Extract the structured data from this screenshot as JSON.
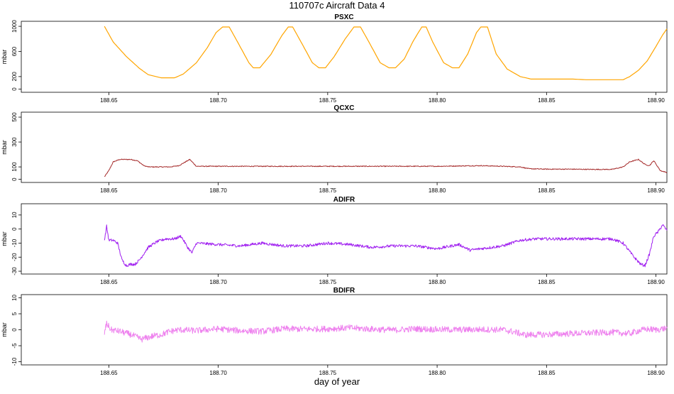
{
  "figure": {
    "title": "110707c   Aircraft Data 4",
    "xlabel": "day of year"
  },
  "chart_data": [
    {
      "type": "line",
      "title": "PSXC",
      "ylabel": "mbar",
      "xlim": [
        188.61,
        188.905
      ],
      "ylim": [
        -50,
        1080
      ],
      "xticks": [
        "188.65",
        "188.70",
        "188.75",
        "188.80",
        "188.85",
        "188.90"
      ],
      "yticks": [
        "0",
        "200",
        "600",
        "1000"
      ],
      "color": "#ffa500",
      "series": [
        {
          "x": [
            188.648,
            188.652,
            188.658,
            188.664,
            188.668,
            188.674,
            188.68,
            188.684,
            188.69,
            188.695,
            188.699,
            188.702,
            188.705,
            188.709,
            188.714,
            188.716,
            188.719,
            188.724,
            188.729,
            188.732,
            188.734,
            188.738,
            188.743,
            188.746,
            188.749,
            188.753,
            188.758,
            188.762,
            188.765,
            188.769,
            188.774,
            188.778,
            188.781,
            188.785,
            188.789,
            188.793,
            188.795,
            188.798,
            188.803,
            188.807,
            188.81,
            188.814,
            188.818,
            188.82,
            188.823,
            188.827,
            188.832,
            188.838,
            188.843,
            188.85,
            188.856,
            188.862,
            188.868,
            188.875,
            188.88,
            188.885,
            188.888,
            188.892,
            188.896,
            188.9,
            188.903,
            188.905
          ],
          "y": [
            1000,
            750,
            520,
            330,
            230,
            180,
            180,
            240,
            420,
            660,
            900,
            990,
            990,
            740,
            420,
            340,
            340,
            550,
            850,
            990,
            990,
            740,
            420,
            340,
            340,
            520,
            800,
            990,
            990,
            740,
            420,
            340,
            340,
            480,
            760,
            990,
            990,
            750,
            420,
            340,
            340,
            560,
            900,
            990,
            990,
            560,
            320,
            200,
            160,
            160,
            160,
            160,
            150,
            150,
            150,
            150,
            200,
            300,
            450,
            680,
            860,
            960
          ]
        }
      ]
    },
    {
      "type": "line",
      "title": "QCXC",
      "ylabel": "mbar",
      "xlim": [
        188.61,
        188.905
      ],
      "ylim": [
        -25,
        540
      ],
      "xticks": [
        "188.65",
        "188.70",
        "188.75",
        "188.80",
        "188.85",
        "188.90"
      ],
      "yticks": [
        "0",
        "100",
        "300",
        "500"
      ],
      "color": "#a52a2a",
      "series": [
        {
          "x": [
            188.648,
            188.65,
            188.652,
            188.655,
            188.66,
            188.663,
            188.666,
            188.668,
            188.672,
            188.678,
            188.682,
            188.685,
            188.687,
            188.69,
            188.7,
            188.72,
            188.74,
            188.76,
            188.78,
            188.8,
            188.82,
            188.83,
            188.838,
            188.842,
            188.85,
            188.86,
            188.87,
            188.88,
            188.885,
            188.888,
            188.892,
            188.895,
            188.897,
            188.899,
            188.902,
            188.905
          ],
          "y": [
            20,
            70,
            140,
            160,
            160,
            150,
            110,
            100,
            100,
            100,
            110,
            140,
            160,
            105,
            105,
            105,
            105,
            105,
            105,
            105,
            110,
            105,
            100,
            85,
            82,
            82,
            80,
            80,
            100,
            140,
            160,
            120,
            110,
            150,
            70,
            55
          ]
        }
      ]
    },
    {
      "type": "line",
      "title": "ADIFR",
      "ylabel": "mbar",
      "xlim": [
        188.61,
        188.905
      ],
      "ylim": [
        -32,
        18
      ],
      "xticks": [
        "188.65",
        "188.70",
        "188.75",
        "188.80",
        "188.85",
        "188.90"
      ],
      "yticks": [
        "-30",
        "-20",
        "-10",
        "0",
        "10"
      ],
      "color": "#a020f0",
      "series": [
        {
          "x": [
            188.648,
            188.649,
            188.65,
            188.652,
            188.654,
            188.656,
            188.658,
            188.66,
            188.662,
            188.664,
            188.668,
            188.672,
            188.676,
            188.68,
            188.683,
            188.686,
            188.688,
            188.69,
            188.7,
            188.71,
            188.72,
            188.73,
            188.74,
            188.75,
            188.76,
            188.77,
            188.78,
            188.79,
            188.8,
            188.81,
            188.815,
            188.82,
            188.83,
            188.838,
            188.845,
            188.86,
            188.88,
            188.885,
            188.89,
            188.893,
            188.895,
            188.897,
            188.899,
            188.901,
            188.903,
            188.905
          ],
          "y": [
            -8,
            2,
            -8,
            -8,
            -10,
            -22,
            -26,
            -25,
            -25,
            -22,
            -13,
            -9,
            -7,
            -7,
            -5,
            -13,
            -17,
            -10,
            -11,
            -12,
            -10,
            -12,
            -12,
            -10,
            -11,
            -13,
            -12,
            -12,
            -14,
            -11,
            -15,
            -14,
            -12,
            -8,
            -7,
            -7,
            -7,
            -10,
            -20,
            -25,
            -26,
            -18,
            -5,
            -2,
            3,
            -1
          ]
        }
      ]
    },
    {
      "type": "line",
      "title": "BDIFR",
      "ylabel": "mbar",
      "xlim": [
        188.61,
        188.905
      ],
      "ylim": [
        -11,
        11
      ],
      "xticks": [
        "188.65",
        "188.70",
        "188.75",
        "188.80",
        "188.85",
        "188.90"
      ],
      "yticks": [
        "-10",
        "-5",
        "0",
        "5",
        "10"
      ],
      "color": "#ee82ee",
      "series": [
        {
          "x": [
            188.648,
            188.649,
            188.651,
            188.655,
            188.66,
            188.665,
            188.67,
            188.674,
            188.678,
            188.682,
            188.69,
            188.7,
            188.71,
            188.72,
            188.73,
            188.74,
            188.75,
            188.76,
            188.77,
            188.78,
            188.79,
            188.8,
            188.81,
            188.82,
            188.83,
            188.836,
            188.84,
            188.85,
            188.86,
            188.87,
            188.88,
            188.888,
            188.892,
            188.896,
            188.9,
            188.905
          ],
          "y": [
            -1,
            2,
            0,
            -0.5,
            -1.5,
            -3,
            -2,
            -1.5,
            -0.5,
            0,
            -0.3,
            0.3,
            -0.3,
            -0.5,
            0.3,
            0.2,
            0.3,
            0.6,
            0.2,
            -0.1,
            0.3,
            0.1,
            0,
            0.1,
            0,
            -0.8,
            -1.6,
            -1.5,
            -1.2,
            -1,
            -0.8,
            -1.2,
            -0.3,
            0.2,
            0,
            0.5
          ]
        }
      ]
    }
  ]
}
